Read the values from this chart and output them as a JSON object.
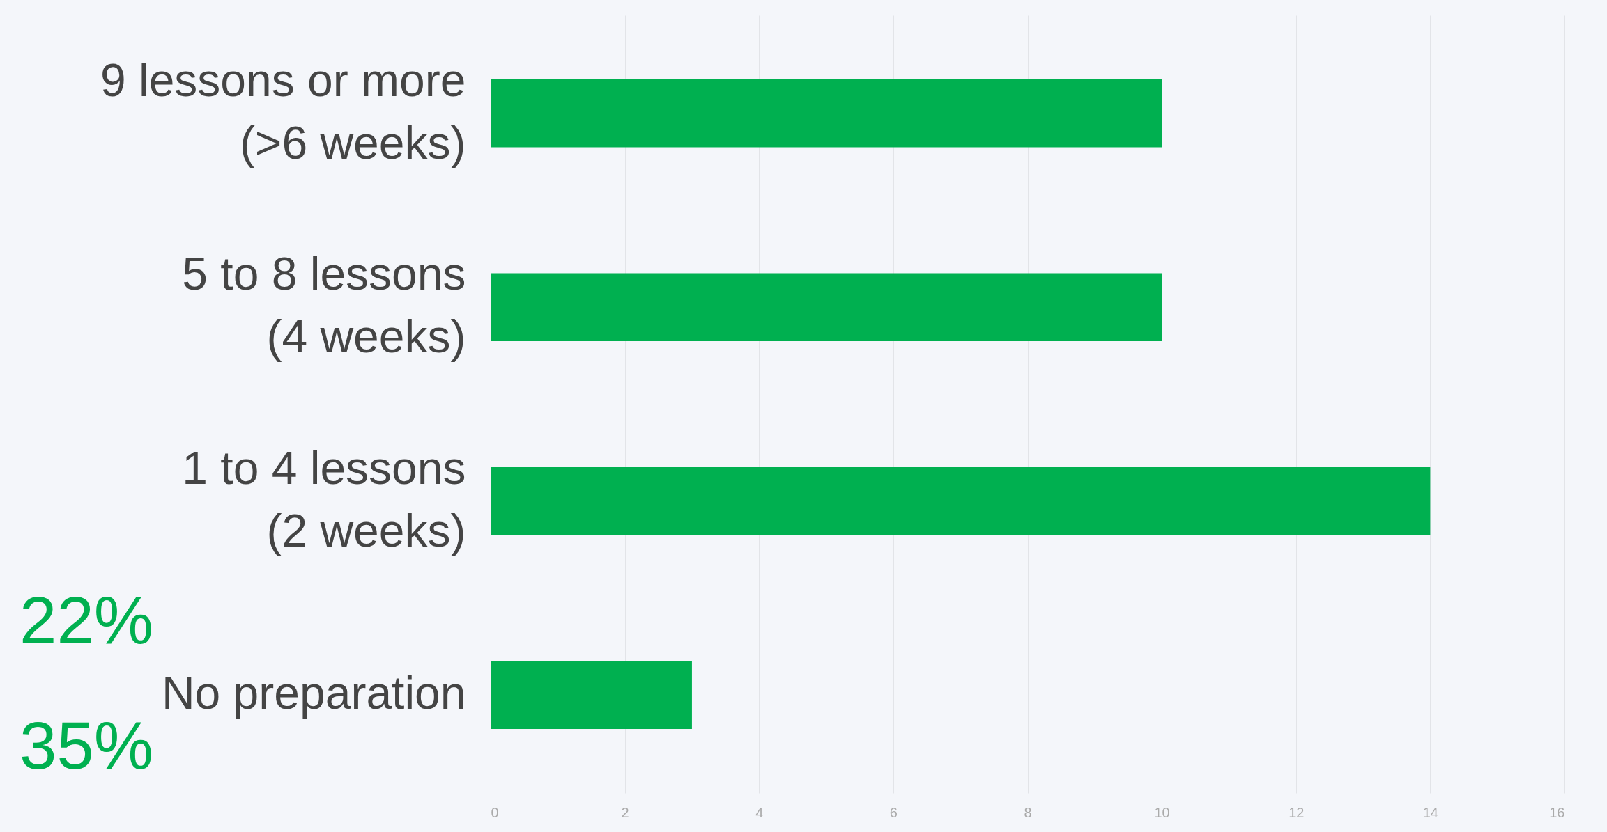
{
  "chart_data": {
    "type": "bar",
    "orientation": "horizontal",
    "categories": [
      "9 lessons or more\n(>6 weeks)",
      "5 to 8 lessons\n(4 weeks)",
      "1 to 4 lessons\n(2 weeks)",
      "No preparation"
    ],
    "values": [
      10,
      10,
      14,
      3
    ],
    "color": "#00b050",
    "xlim": [
      0,
      16
    ],
    "xticks": [
      0,
      2,
      4,
      6,
      8,
      10,
      12,
      14,
      16
    ],
    "grid": "x",
    "annotations": [
      "22%",
      "35%"
    ]
  }
}
